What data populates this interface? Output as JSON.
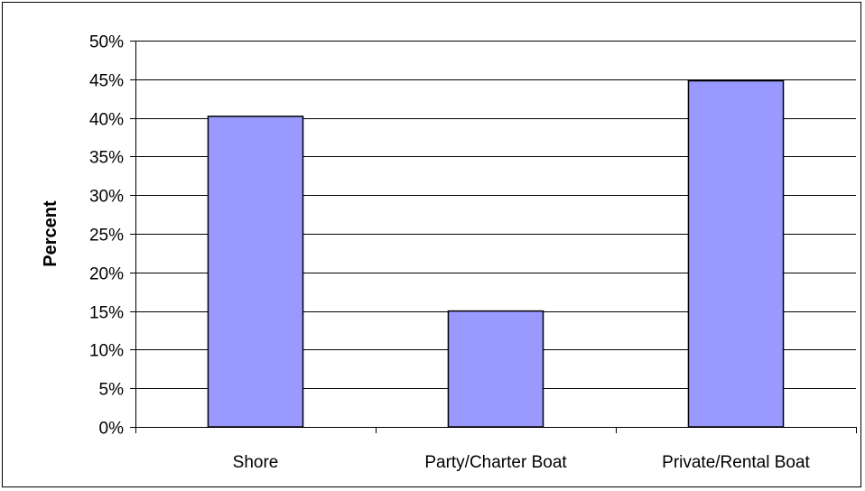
{
  "chart_data": {
    "type": "bar",
    "title": "",
    "xlabel": "",
    "ylabel": "Percent",
    "categories": [
      "Shore",
      "Party/Charter Boat",
      "Private/Rental Boat"
    ],
    "values": [
      40.2,
      15.0,
      44.8
    ],
    "ylim": [
      0,
      50
    ],
    "ytick_step": 5,
    "ytick_suffix": "%",
    "grid": true,
    "bar_color": "#9999ff",
    "bar_edge_color": "#000000",
    "legend": "none"
  }
}
